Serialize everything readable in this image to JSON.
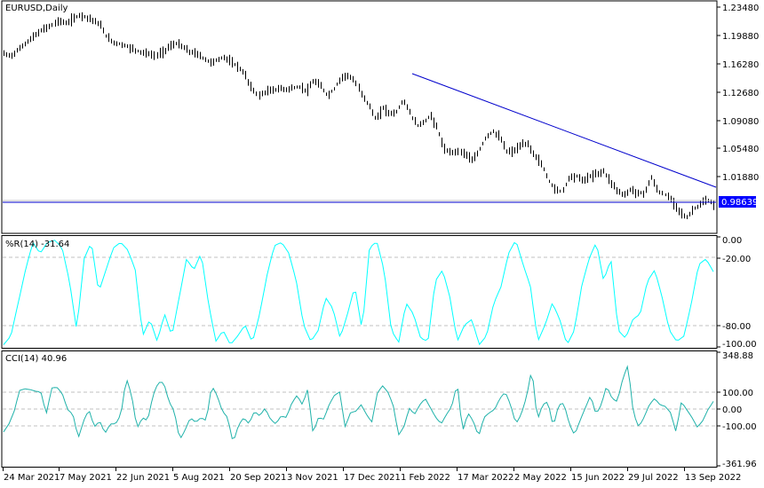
{
  "chart_window": {
    "symbol_title": "EURUSD,Daily",
    "current_price_label": "0.98639",
    "colors": {
      "price_bars": "#000000",
      "trendline": "#0000cc",
      "hline": "#0000cc",
      "price_label_bg": "#0000ff",
      "price_label_text": "#ffffff",
      "wpr_line": "#00ffff",
      "cci_line": "#20b2aa",
      "level_lines": "#c0c0c0",
      "background": "#ffffff",
      "frame": "#000000"
    }
  },
  "price_axis": {
    "ticks": [
      "1.23480",
      "1.19880",
      "1.16280",
      "1.12680",
      "1.09080",
      "1.05480",
      "1.01880"
    ]
  },
  "wpr": {
    "title": "%R(14) -31.64",
    "ticks": [
      "0.00",
      "-20.00",
      "-80.00",
      "-100.00"
    ]
  },
  "cci": {
    "title": "CCI(14) 40.96",
    "ticks": [
      "348.88",
      "100.00",
      "0.00",
      "-100.00",
      "-361.96"
    ]
  },
  "time_axis": {
    "ticks": [
      "24 Mar 2021",
      "7 May 2021",
      "22 Jun 2021",
      "5 Aug 2021",
      "20 Sep 2021",
      "3 Nov 2021",
      "17 Dec 2021",
      "1 Feb 2022",
      "17 Mar 2022",
      "2 May 2022",
      "15 Jun 2022",
      "29 Jul 2022",
      "13 Sep 2022"
    ]
  },
  "chart_data": [
    {
      "type": "line",
      "title": "EURUSD,Daily",
      "series": [
        {
          "name": "EURUSD close (approx, OHLC bars)",
          "values": [
            1.176,
            1.173,
            1.18,
            1.188,
            1.195,
            1.202,
            1.208,
            1.212,
            1.218,
            1.214,
            1.22,
            1.225,
            1.222,
            1.218,
            1.212,
            1.196,
            1.19,
            1.188,
            1.185,
            1.181,
            1.178,
            1.176,
            1.173,
            1.178,
            1.185,
            1.189,
            1.184,
            1.178,
            1.176,
            1.17,
            1.165,
            1.168,
            1.172,
            1.165,
            1.16,
            1.15,
            1.132,
            1.123,
            1.128,
            1.13,
            1.132,
            1.131,
            1.133,
            1.134,
            1.129,
            1.142,
            1.135,
            1.123,
            1.132,
            1.146,
            1.149,
            1.14,
            1.124,
            1.11,
            1.092,
            1.108,
            1.1,
            1.103,
            1.118,
            1.1,
            1.085,
            1.09,
            1.098,
            1.08,
            1.054,
            1.052,
            1.053,
            1.05,
            1.04,
            1.055,
            1.072,
            1.078,
            1.07,
            1.052,
            1.053,
            1.06,
            1.063,
            1.048,
            1.038,
            1.018,
            1.005,
            1.002,
            1.02,
            1.022,
            1.016,
            1.021,
            1.024,
            1.028,
            1.015,
            1.004,
            0.997,
            1.005,
            1.0,
            1.0,
            1.02,
            1.002,
            0.998,
            0.99,
            0.978,
            0.968,
            0.98,
            0.985,
            0.992,
            0.986
          ]
        }
      ],
      "xlabel": "",
      "ylabel": "",
      "ylim": [
        0.955,
        1.2348
      ],
      "annotations": [
        "Descending trendline from 1 Feb 2022 high to mid Sep 2022",
        "Horizontal line at 0.98639"
      ]
    },
    {
      "type": "line",
      "title": "%R(14) -31.64",
      "series": [
        {
          "name": "Williams %R(14)",
          "values": [
            -98,
            -90,
            -60,
            -30,
            -5,
            -15,
            -5,
            -3,
            -10,
            -40,
            -85,
            -20,
            -5,
            -50,
            -30,
            -10,
            -5,
            -12,
            -30,
            -90,
            -75,
            -95,
            -70,
            -90,
            -55,
            -20,
            -30,
            -15,
            -60,
            -95,
            -85,
            -98,
            -90,
            -80,
            -96,
            -70,
            -35,
            -8,
            -5,
            -15,
            -40,
            -80,
            -95,
            -85,
            -55,
            -65,
            -92,
            -70,
            -45,
            -85,
            -10,
            -4,
            -30,
            -85,
            -96,
            -60,
            -70,
            -92,
            -95,
            -40,
            -30,
            -55,
            -95,
            -80,
            -75,
            -98,
            -90,
            -60,
            -45,
            -15,
            -3,
            -25,
            -45,
            -95,
            -80,
            -60,
            -75,
            -98,
            -85,
            -45,
            -20,
            -5,
            -40,
            -20,
            -85,
            -92,
            -75,
            -70,
            -40,
            -30,
            -55,
            -85,
            -95,
            -90,
            -60,
            -25,
            -20,
            -31.64
          ]
        }
      ],
      "ylim": [
        -100,
        0
      ],
      "levels": [
        -20,
        -80
      ]
    },
    {
      "type": "line",
      "title": "CCI(14) 40.96",
      "series": [
        {
          "name": "CCI(14)",
          "values": [
            -150,
            -100,
            -20,
            110,
            120,
            115,
            105,
            100,
            -40,
            125,
            130,
            90,
            -10,
            -40,
            -190,
            -80,
            -10,
            -120,
            -80,
            -160,
            -100,
            -100,
            -40,
            190,
            80,
            -130,
            -60,
            -80,
            80,
            160,
            160,
            40,
            -20,
            -200,
            -140,
            -60,
            -90,
            -60,
            -80,
            140,
            80,
            -20,
            -60,
            -220,
            -110,
            -60,
            -100,
            -20,
            -50,
            0,
            -70,
            -100,
            -50,
            -60,
            30,
            80,
            20,
            120,
            -160,
            -60,
            -70,
            20,
            80,
            100,
            -120,
            -30,
            -20,
            20,
            -40,
            -90,
            90,
            140,
            100,
            20,
            -170,
            -120,
            0,
            -40,
            20,
            60,
            0,
            -60,
            -100,
            -40,
            10,
            160,
            -150,
            -30,
            -80,
            -180,
            -60,
            -30,
            -10,
            60,
            100,
            20,
            -100,
            -40,
            70,
            250,
            -80,
            20,
            40,
            -120,
            20,
            30,
            -100,
            -170,
            -80,
            0,
            80,
            -40,
            20,
            140,
            60,
            40,
            180,
            270,
            -30,
            -120,
            -60,
            20,
            60,
            20,
            10,
            -30,
            -150,
            40,
            -10,
            -60,
            -120,
            -80,
            -10,
            40.96
          ]
        }
      ],
      "ylim": [
        -361.96,
        348.88
      ],
      "levels": [
        100,
        0,
        -100
      ]
    }
  ]
}
